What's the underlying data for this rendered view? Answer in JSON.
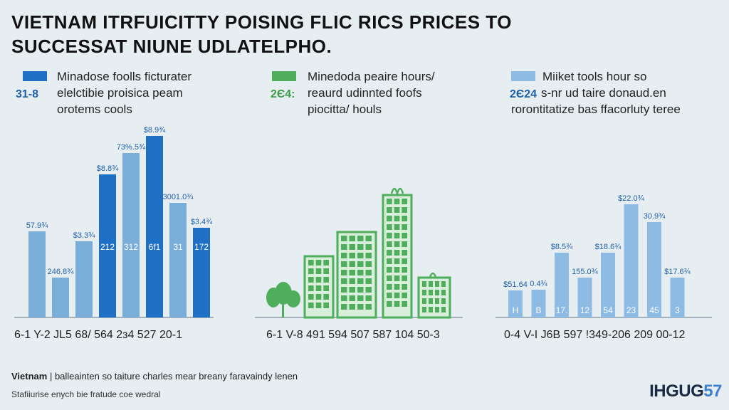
{
  "title": {
    "line1": "VIETNAM ITRFUICITTY POISING FLIC RICS PRICES TO",
    "line2": "SUCCESSAT NIUNE UDLATELPHO."
  },
  "colors": {
    "dark_blue": "#1f6fc4",
    "mid_blue": "#7aaed8",
    "light_blue": "#8dbbe4",
    "green": "#4fae5c",
    "green_light": "#d9efdc",
    "axis": "#7d8c99",
    "label_blue": "#1f5fa8"
  },
  "panels": [
    {
      "legend_lines": [
        "Minadose foolls ficturater",
        "elelctibie proisica peam",
        "orotems cools"
      ],
      "legend_year": "31-8",
      "legend_swatch": "dark_blue",
      "x_label": "6-1  Y-2  JL5  68/  564  2з4  527  20-1"
    },
    {
      "legend_lines": [
        "Minedoda peaire hours/",
        "reaurd udinnted foofs",
        "piocitta/ houls"
      ],
      "legend_year": "2Є4:",
      "legend_swatch": "green",
      "x_label": "6-1  V-8  491  594  507  587  104  50-3"
    },
    {
      "legend_lines": [
        "Miiket tools hour so",
        "s-nr ud taire donaud.en",
        "rorontitatize bas ffacorluty teree"
      ],
      "legend_year": "2Є24",
      "legend_swatch": "light_blue",
      "x_label": "0-4  V-I  J6B  597  !349-206  209  00-12"
    }
  ],
  "chart_data": [
    {
      "type": "bar",
      "ylim": [
        0,
        280
      ],
      "bars": [
        {
          "value": 121,
          "color": "mid_blue",
          "top_label": "57.9¾",
          "inner_label": ""
        },
        {
          "value": 56,
          "color": "mid_blue",
          "top_label": "246.8¾",
          "inner_label": ""
        },
        {
          "value": 107,
          "color": "mid_blue",
          "top_label": "$3.3¾",
          "inner_label": ""
        },
        {
          "value": 201,
          "color": "dark_blue",
          "top_label": "$8.8¾",
          "inner_label": "212"
        },
        {
          "value": 231,
          "color": "mid_blue",
          "top_label": "73%.5¾",
          "inner_label": "312"
        },
        {
          "value": 255,
          "color": "dark_blue",
          "top_label": "$8.9¾",
          "inner_label": "6f1"
        },
        {
          "value": 161,
          "color": "mid_blue",
          "top_label": "3001.0¾",
          "inner_label": "31"
        },
        {
          "value": 126,
          "color": "dark_blue",
          "top_label": "$3.4¾",
          "inner_label": "172"
        }
      ]
    },
    {
      "type": "bar",
      "ylim": [
        0,
        280
      ],
      "bars": [
        {
          "value": 0,
          "label": "",
          "kind": "tree"
        },
        {
          "value": 86,
          "label": "",
          "kind": "building"
        },
        {
          "value": 120,
          "label": "",
          "kind": "building"
        },
        {
          "value": 172,
          "label": "",
          "kind": "building"
        },
        {
          "value": 56,
          "label": "",
          "kind": "building"
        }
      ]
    },
    {
      "type": "bar",
      "ylim": [
        0,
        280
      ],
      "bars": [
        {
          "value": 38,
          "color": "light_blue",
          "top_label": "$51.64",
          "inner_label": "H"
        },
        {
          "value": 39,
          "color": "light_blue",
          "top_label": "0.4¾",
          "inner_label": "B"
        },
        {
          "value": 91,
          "color": "light_blue",
          "top_label": "$8.5¾",
          "inner_label": "17."
        },
        {
          "value": 56,
          "color": "light_blue",
          "top_label": "155.0¾",
          "inner_label": "12"
        },
        {
          "value": 91,
          "color": "light_blue",
          "top_label": "$18.6¾",
          "inner_label": "54"
        },
        {
          "value": 159,
          "color": "light_blue",
          "top_label": "$22.0¾",
          "inner_label": "23"
        },
        {
          "value": 134,
          "color": "light_blue",
          "top_label": "30.9¾",
          "inner_label": "45"
        },
        {
          "value": 56,
          "color": "light_blue",
          "top_label": "$17.6¾",
          "inner_label": "3"
        }
      ]
    }
  ],
  "footer": {
    "bold": "Vietnam",
    "rest": " | balleainten so taiture charles mear breany faravaindy lenen",
    "line2": "Stafiiurise enych bie fratude coe wedral"
  },
  "logo": {
    "main": "IHGUG",
    "accent": "57"
  }
}
